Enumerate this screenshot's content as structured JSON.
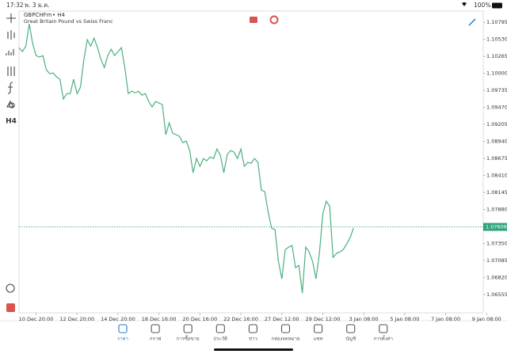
{
  "status_bar": {
    "time": "17:32",
    "date": "พ. 3 ม.ค.",
    "battery": "100%"
  },
  "toolbar": {
    "timeframe": "H4"
  },
  "chart_data": {
    "type": "line",
    "title": "GBPCHFm",
    "period": "• H4",
    "subtitle": "Great Britain Pound vs Swiss Franc",
    "color": "#4caf7d",
    "x": [
      -5,
      -4,
      -3,
      -2,
      -1,
      0,
      1,
      2,
      3,
      4,
      5,
      6,
      7,
      8,
      9,
      10,
      11,
      12,
      13,
      14,
      15,
      16,
      17,
      18,
      19,
      20,
      21,
      22,
      23,
      24,
      25,
      26,
      27,
      28,
      29,
      30,
      31,
      32,
      33,
      34,
      35,
      36,
      37,
      38,
      39,
      40,
      41,
      42,
      43,
      44,
      45,
      46,
      47,
      48,
      49,
      50,
      51,
      52,
      53,
      54,
      55,
      56,
      57,
      58,
      59,
      60,
      61,
      62,
      63,
      64,
      65,
      66,
      67,
      68,
      69,
      70,
      71,
      72,
      73,
      74,
      75,
      76,
      77,
      78,
      79,
      80,
      81,
      82,
      83,
      84,
      85,
      86,
      87,
      88,
      89,
      90,
      91,
      92,
      93
    ],
    "values": [
      1.104,
      1.10339,
      1.10425,
      1.1077,
      1.10462,
      1.10277,
      1.10253,
      1.10277,
      1.10055,
      1.09994,
      1.10006,
      1.09944,
      1.09907,
      1.09599,
      1.09685,
      1.09685,
      1.09907,
      1.09685,
      1.09784,
      1.10216,
      1.10524,
      1.10425,
      1.10548,
      1.104,
      1.10216,
      1.10092,
      1.10277,
      1.10376,
      1.10277,
      1.10339,
      1.104,
      1.10092,
      1.09685,
      1.09722,
      1.09698,
      1.09722,
      1.09661,
      1.09685,
      1.09562,
      1.09476,
      1.09562,
      1.09537,
      1.09513,
      1.09044,
      1.09229,
      1.09069,
      1.09044,
      1.0902,
      1.08921,
      1.08946,
      1.08798,
      1.08452,
      1.08674,
      1.08551,
      1.08674,
      1.08637,
      1.08699,
      1.08674,
      1.08822,
      1.08724,
      1.08452,
      1.08736,
      1.08798,
      1.08773,
      1.08674,
      1.08822,
      1.08551,
      1.08613,
      1.086,
      1.08674,
      1.08613,
      1.08181,
      1.08156,
      1.07836,
      1.07589,
      1.07565,
      1.07071,
      1.068,
      1.07256,
      1.07293,
      1.07318,
      1.06973,
      1.0701,
      1.06578,
      1.07293,
      1.07219,
      1.07071,
      1.068,
      1.07195,
      1.07811,
      1.08008,
      1.07934,
      1.07133,
      1.07195,
      1.07219,
      1.07256,
      1.07343,
      1.07441,
      1.07589
    ],
    "xlim": [
      -5,
      131
    ],
    "ylim": [
      1.0627,
      1.1097
    ],
    "xticks": [
      {
        "value": 0,
        "label": "10 Dec 20:00"
      },
      {
        "value": 12,
        "label": "12 Dec 20:00"
      },
      {
        "value": 24,
        "label": "14 Dec 20:00"
      },
      {
        "value": 36,
        "label": "18 Dec 16:00"
      },
      {
        "value": 48,
        "label": "20 Dec 16:00"
      },
      {
        "value": 60,
        "label": "22 Dec 16:00"
      },
      {
        "value": 72,
        "label": "27 Dec 12:00"
      },
      {
        "value": 84,
        "label": "29 Dec 12:00"
      },
      {
        "value": 96,
        "label": "3 Jan 08:00"
      },
      {
        "value": 108,
        "label": "5 Jan 08:00"
      },
      {
        "value": 120,
        "label": "7 Jan 08:00"
      },
      {
        "value": 132,
        "label": "9 Jan 08:00"
      }
    ],
    "yticks": [
      1.10795,
      {
        "value": 1.1053,
        "label": "1.10530"
      },
      1.10265,
      {
        "value": 1.1,
        "label": "1.10000"
      },
      1.09735,
      {
        "value": 1.0947,
        "label": "1.09470"
      },
      1.09205,
      {
        "value": 1.0894,
        "label": "1.08940"
      },
      1.08675,
      {
        "value": 1.0841,
        "label": "1.08410"
      },
      1.08145,
      {
        "value": 1.0788,
        "label": "1.07880"
      },
      {
        "value": 1.0735,
        "label": "1.07350"
      },
      1.07085,
      {
        "value": 1.0682,
        "label": "1.06820"
      },
      1.06555
    ],
    "current_price": 1.07608,
    "current_price_color": "#2fa37a"
  },
  "tabs": [
    "ราคา",
    "กราฟ",
    "การซื้อขาย",
    "ประวัติ",
    "ข่าว",
    "กล่องจดหมาย",
    "แชท",
    "บัญชี",
    "การตั้งค่า"
  ]
}
